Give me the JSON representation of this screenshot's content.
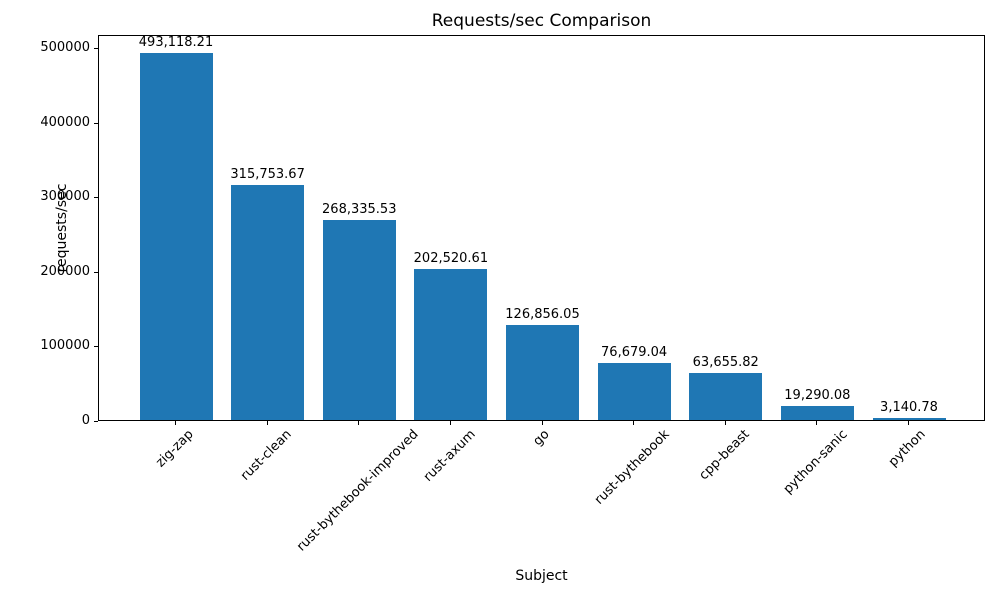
{
  "chart_data": {
    "type": "bar",
    "title": "Requests/sec Comparison",
    "xlabel": "Subject",
    "ylabel": "requests/sec",
    "categories": [
      "zig-zap",
      "rust-clean",
      "rust-bythebook-improved",
      "rust-axum",
      "go",
      "rust-bythebook",
      "cpp-beast",
      "python-sanic",
      "python"
    ],
    "values": [
      493118.21,
      315753.67,
      268335.53,
      202520.61,
      126856.05,
      76679.04,
      63655.82,
      19290.08,
      3140.78
    ],
    "value_labels": [
      "493,118.21",
      "315,753.67",
      "268,335.53",
      "202,520.61",
      "126,856.05",
      "76,679.04",
      "63,655.82",
      "19,290.08",
      "3,140.78"
    ],
    "yticks": [
      0,
      100000,
      200000,
      300000,
      400000,
      500000
    ],
    "ytick_labels": [
      "0",
      "100000",
      "200000",
      "300000",
      "400000",
      "500000"
    ],
    "ylim": [
      0,
      518000
    ],
    "bar_color": "#1f77b4",
    "grid": false,
    "legend": false,
    "xtick_rotation_deg": 45
  }
}
